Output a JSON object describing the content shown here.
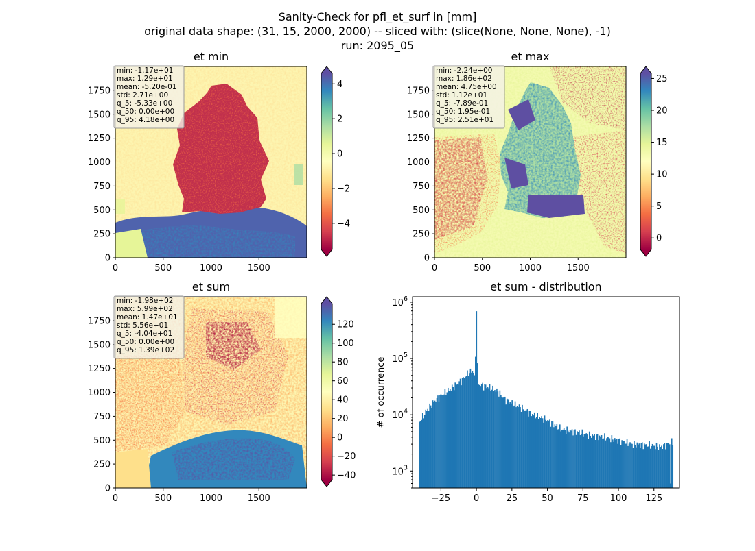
{
  "figure": {
    "title_lines": [
      "Sanity-Check for pfl_et_surf in [mm]",
      "original data shape: (31, 15, 2000, 2000) -- sliced with: (slice(None, None, None), -1)",
      "run: 2095_05"
    ]
  },
  "colors": {
    "spectral_stops": [
      "#9e0142",
      "#d53e4f",
      "#f46d43",
      "#fdae61",
      "#fee08b",
      "#ffffbf",
      "#e6f598",
      "#abdda4",
      "#66c2a5",
      "#3288bd",
      "#5e4fa2"
    ],
    "hist_bar": "#1f77b4"
  },
  "chart_data": [
    {
      "type": "heatmap",
      "title": "et min",
      "x_ticks": [
        "0",
        "500",
        "1000",
        "1500"
      ],
      "y_ticks": [
        "0",
        "250",
        "500",
        "750",
        "1000",
        "1250",
        "1500",
        "1750"
      ],
      "xlim": [
        0,
        2000
      ],
      "ylim": [
        0,
        2000
      ],
      "colorbar": {
        "range": [
          -5.5,
          4.6
        ],
        "ticks": [
          "4",
          "2",
          "0",
          "−2",
          "−4"
        ],
        "tick_values": [
          4,
          2,
          0,
          -2,
          -4
        ],
        "extend": "both"
      },
      "stats": [
        "min: -1.17e+01",
        "max: 1.29e+01",
        "mean: -5.20e-01",
        "std: 2.71e+00",
        "q_5: -5.33e+00",
        "q_50: 0.00e+00",
        "q_95: 4.18e+00"
      ]
    },
    {
      "type": "heatmap",
      "title": "et max",
      "x_ticks": [
        "0",
        "500",
        "1000",
        "1500"
      ],
      "y_ticks": [
        "0",
        "250",
        "500",
        "750",
        "1000",
        "1250",
        "1500",
        "1750"
      ],
      "xlim": [
        0,
        2000
      ],
      "ylim": [
        0,
        2000
      ],
      "colorbar": {
        "range": [
          -1.8,
          25.8
        ],
        "ticks": [
          "25",
          "20",
          "15",
          "10",
          "5",
          "0"
        ],
        "tick_values": [
          25,
          20,
          15,
          10,
          5,
          0
        ],
        "extend": "both"
      },
      "stats": [
        "min: -2.24e+00",
        "max: 1.86e+02",
        "mean: 4.75e+00",
        "std: 1.12e+01",
        "q_5: -7.89e-01",
        "q_50: 1.95e-01",
        "q_95: 2.51e+01"
      ]
    },
    {
      "type": "heatmap",
      "title": "et sum",
      "x_ticks": [
        "0",
        "500",
        "1000",
        "1500"
      ],
      "y_ticks": [
        "0",
        "250",
        "500",
        "750",
        "1000",
        "1250",
        "1500",
        "1750"
      ],
      "xlim": [
        0,
        2000
      ],
      "ylim": [
        0,
        2000
      ],
      "colorbar": {
        "range": [
          -45,
          142
        ],
        "ticks": [
          "120",
          "100",
          "80",
          "60",
          "40",
          "20",
          "0",
          "−20",
          "−40"
        ],
        "tick_values": [
          120,
          100,
          80,
          60,
          40,
          20,
          0,
          -20,
          -40
        ],
        "extend": "both"
      },
      "stats": [
        "min: -1.98e+02",
        "max: 5.99e+02",
        "mean: 1.47e+01",
        "std: 5.56e+01",
        "q_5: -4.04e+01",
        "q_50: 0.00e+00",
        "q_95: 1.39e+02"
      ]
    },
    {
      "type": "bar",
      "title": "et sum - distribution",
      "ylabel": "# of occurrence",
      "yscale": "log",
      "xlim": [
        -45,
        143
      ],
      "ylim": [
        500,
        1250000
      ],
      "x_ticks": [
        "−25",
        "0",
        "25",
        "50",
        "75",
        "100",
        "125"
      ],
      "x_tick_values": [
        -25,
        0,
        25,
        50,
        75,
        100,
        125
      ],
      "y_ticks": [
        {
          "base": "10",
          "exp": "3",
          "value": 1000
        },
        {
          "base": "10",
          "exp": "4",
          "value": 10000
        },
        {
          "base": "10",
          "exp": "5",
          "value": 100000
        },
        {
          "base": "10",
          "exp": "6",
          "value": 1000000
        }
      ],
      "bin_edges": [
        -40.4,
        138.6
      ],
      "x": [
        -40,
        -35,
        -30,
        -25,
        -20,
        -15,
        -10,
        -5,
        -2,
        -1,
        0,
        1,
        5,
        10,
        15,
        20,
        25,
        30,
        40,
        50,
        60,
        70,
        80,
        90,
        100,
        110,
        120,
        130,
        138
      ],
      "y": [
        7500,
        12000,
        17000,
        22000,
        27000,
        33000,
        42000,
        58000,
        60000,
        38000,
        820000,
        35000,
        33000,
        30000,
        26000,
        19000,
        16000,
        14000,
        10000,
        8000,
        5500,
        5000,
        4300,
        4000,
        3500,
        3000,
        2900,
        2700,
        3300
      ]
    }
  ]
}
